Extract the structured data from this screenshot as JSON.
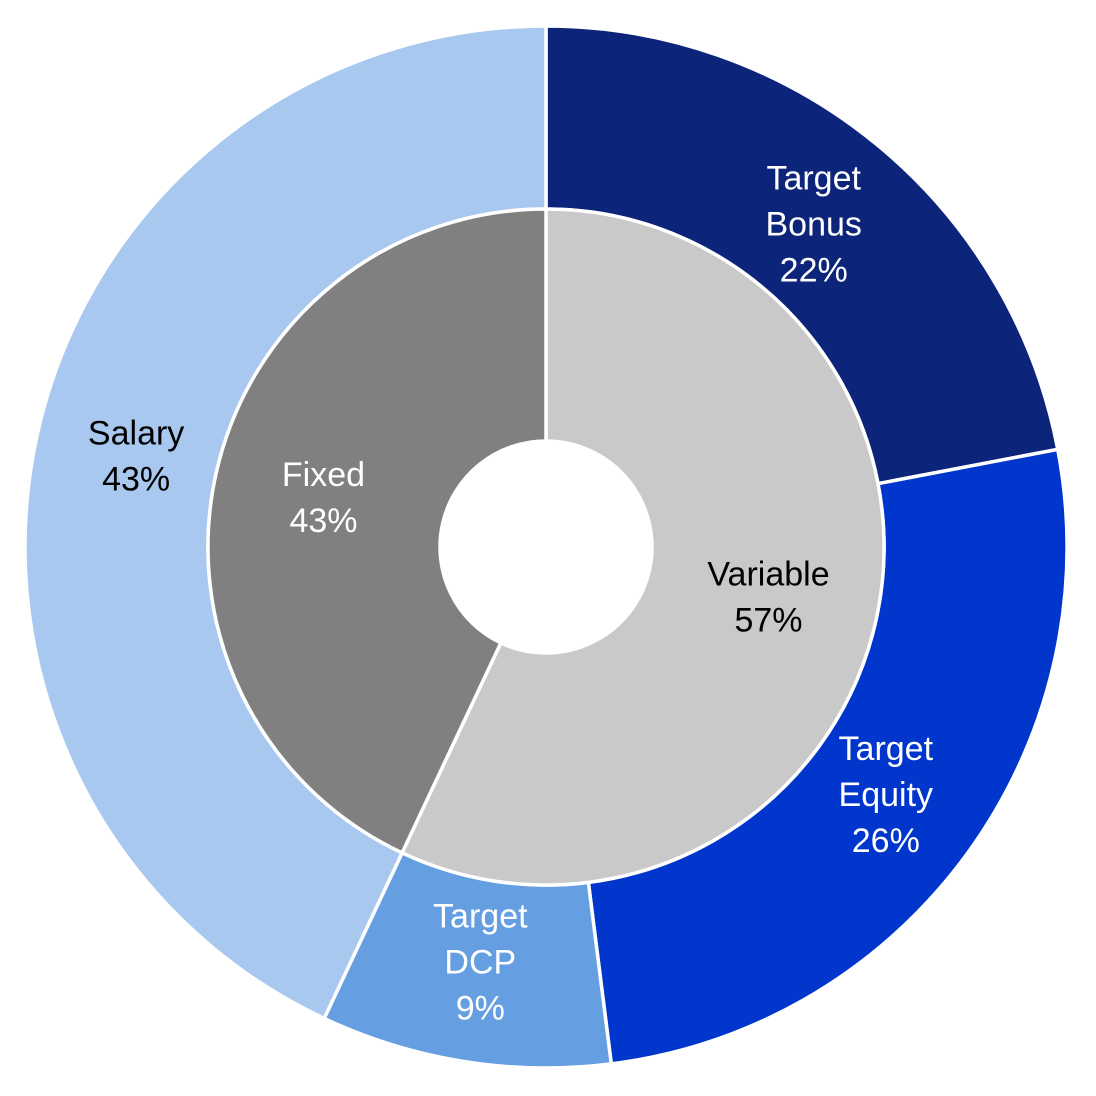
{
  "chart_data": {
    "type": "pie",
    "variant": "nested-donut",
    "rings": [
      {
        "ring": "inner",
        "slices": [
          {
            "name": "Variable",
            "value": 57,
            "label": [
              "Variable",
              "57%"
            ],
            "color": "#c9c9c9",
            "text_color": "#000000"
          },
          {
            "name": "Fixed",
            "value": 43,
            "label": [
              "Fixed",
              "43%"
            ],
            "color": "#808080",
            "text_color": "#ffffff"
          }
        ]
      },
      {
        "ring": "outer",
        "slices": [
          {
            "name": "Target Bonus",
            "value": 22,
            "label": [
              "Target",
              "Bonus",
              "22%"
            ],
            "color": "#0c247a",
            "text_color": "#ffffff"
          },
          {
            "name": "Target Equity",
            "value": 26,
            "label": [
              "Target",
              "Equity",
              "26%"
            ],
            "color": "#0036cc",
            "text_color": "#ffffff"
          },
          {
            "name": "Target DCP",
            "value": 9,
            "label": [
              "Target",
              "DCP",
              "9%"
            ],
            "color": "#659fe2",
            "text_color": "#ffffff"
          },
          {
            "name": "Salary",
            "value": 43,
            "label": [
              "Salary",
              "43%"
            ],
            "color": "#a8c8f0",
            "text_color": "#000000"
          }
        ]
      }
    ],
    "start": "12 o'clock",
    "direction": "clockwise",
    "legend": "none"
  }
}
